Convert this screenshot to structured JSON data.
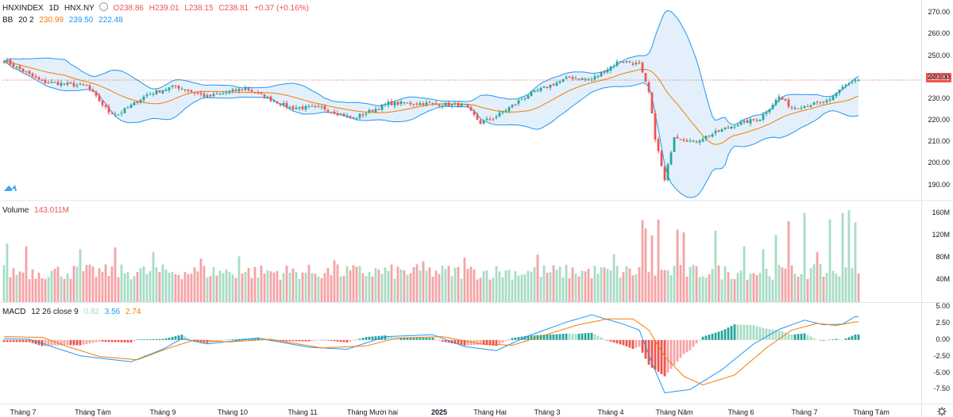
{
  "header": {
    "symbol": "HNXINDEX",
    "interval": "1D",
    "exchange": "HNX.NY",
    "ohlc": {
      "o": "O238.86",
      "h": "H239.01",
      "l": "L238.15",
      "c": "C238.81",
      "change": "+0.37 (+0.16%)"
    }
  },
  "bb_legend": {
    "name": "BB",
    "params": "20 2",
    "basis": "230.99",
    "upper": "239.50",
    "lower": "222.48"
  },
  "volume_legend": {
    "name": "Volume",
    "value": "143.011M"
  },
  "macd_legend": {
    "name": "MACD",
    "params": "12 26 close 9",
    "hist": "0.82",
    "macd": "3.56",
    "signal": "2.74"
  },
  "last_price_label": "238.81",
  "colors": {
    "up": "#26a69a",
    "down": "#ef5350",
    "up_volume": "#a8dcc5",
    "down_volume": "#f5a3a6",
    "bb_band": "#2196f3",
    "bb_basis": "#f57c00",
    "bb_fill": "#e3f0fb",
    "macd_line": "#2196f3",
    "signal_line": "#f57c00"
  },
  "icons": {
    "logo": "tradingview-logo-icon",
    "settings": "gear-icon",
    "visibility": "eye-icon"
  },
  "chart_data": [
    {
      "type": "candlestick",
      "title": "HNXINDEX",
      "yticks": [
        "270.00",
        "260.00",
        "250.00",
        "240.00",
        "230.00",
        "220.00",
        "210.00",
        "200.00",
        "190.00"
      ],
      "ylim": [
        184,
        273
      ],
      "xticks": [
        "Tháng 7",
        "Tháng Tám",
        "Tháng 9",
        "Tháng 10",
        "Tháng 11",
        "Tháng Mười hai",
        "2025",
        "Tháng Hai",
        "Tháng 3",
        "Tháng 4",
        "Tháng Năm",
        "Tháng 6",
        "Tháng 7",
        "Tháng Tám"
      ],
      "close_path": [
        {
          "i": 0,
          "v": 248
        },
        {
          "i": 12,
          "v": 238
        },
        {
          "i": 26,
          "v": 236
        },
        {
          "i": 33,
          "v": 224
        },
        {
          "i": 36,
          "v": 223
        },
        {
          "i": 45,
          "v": 232
        },
        {
          "i": 54,
          "v": 236
        },
        {
          "i": 64,
          "v": 231
        },
        {
          "i": 76,
          "v": 235
        },
        {
          "i": 90,
          "v": 226
        },
        {
          "i": 100,
          "v": 226
        },
        {
          "i": 110,
          "v": 221
        },
        {
          "i": 121,
          "v": 228
        },
        {
          "i": 132,
          "v": 228
        },
        {
          "i": 145,
          "v": 227
        },
        {
          "i": 150,
          "v": 219
        },
        {
          "i": 155,
          "v": 222
        },
        {
          "i": 165,
          "v": 232
        },
        {
          "i": 178,
          "v": 240
        },
        {
          "i": 185,
          "v": 239
        },
        {
          "i": 194,
          "v": 248
        },
        {
          "i": 200,
          "v": 246
        },
        {
          "i": 203,
          "v": 233
        },
        {
          "i": 205,
          "v": 212
        },
        {
          "i": 208,
          "v": 192
        },
        {
          "i": 211,
          "v": 213
        },
        {
          "i": 217,
          "v": 210
        },
        {
          "i": 220,
          "v": 212
        },
        {
          "i": 230,
          "v": 218
        },
        {
          "i": 238,
          "v": 221
        },
        {
          "i": 244,
          "v": 231
        },
        {
          "i": 248,
          "v": 226
        },
        {
          "i": 260,
          "v": 229
        },
        {
          "i": 264,
          "v": 236
        },
        {
          "i": 268,
          "v": 238.81
        }
      ],
      "bb_note": "Bollinger Bands 20 2"
    },
    {
      "type": "bar",
      "title": "Volume",
      "yticks": [
        "160M",
        "120M",
        "80M",
        "40M"
      ],
      "ylim": [
        0,
        175
      ],
      "spikes": [
        {
          "i": 1,
          "v": 105
        },
        {
          "i": 7,
          "v": 100
        },
        {
          "i": 24,
          "v": 95
        },
        {
          "i": 35,
          "v": 98
        },
        {
          "i": 47,
          "v": 90
        },
        {
          "i": 62,
          "v": 78
        },
        {
          "i": 74,
          "v": 82
        },
        {
          "i": 104,
          "v": 75
        },
        {
          "i": 132,
          "v": 73
        },
        {
          "i": 145,
          "v": 80
        },
        {
          "i": 168,
          "v": 85
        },
        {
          "i": 192,
          "v": 86
        },
        {
          "i": 201,
          "v": 147
        },
        {
          "i": 202,
          "v": 132
        },
        {
          "i": 204,
          "v": 120
        },
        {
          "i": 206,
          "v": 148
        },
        {
          "i": 212,
          "v": 130
        },
        {
          "i": 214,
          "v": 125
        },
        {
          "i": 224,
          "v": 128
        },
        {
          "i": 233,
          "v": 100
        },
        {
          "i": 239,
          "v": 95
        },
        {
          "i": 243,
          "v": 120
        },
        {
          "i": 247,
          "v": 145
        },
        {
          "i": 252,
          "v": 160
        },
        {
          "i": 256,
          "v": 90
        },
        {
          "i": 260,
          "v": 148
        },
        {
          "i": 264,
          "v": 160
        },
        {
          "i": 266,
          "v": 165
        },
        {
          "i": 268,
          "v": 143
        }
      ]
    },
    {
      "type": "line",
      "title": "MACD",
      "yticks": [
        "5.00",
        "2.50",
        "0.00",
        "-2.50",
        "-5.00",
        "-7.50"
      ],
      "ylim": [
        -9.5,
        5.5
      ],
      "macd_path": [
        {
          "i": 0,
          "v": 0.2
        },
        {
          "i": 8,
          "v": 0.1
        },
        {
          "i": 15,
          "v": -1.0
        },
        {
          "i": 24,
          "v": -2.4
        },
        {
          "i": 40,
          "v": -3.3
        },
        {
          "i": 50,
          "v": -1.4
        },
        {
          "i": 56,
          "v": 0.2
        },
        {
          "i": 64,
          "v": -0.6
        },
        {
          "i": 80,
          "v": 0.3
        },
        {
          "i": 96,
          "v": -1.1
        },
        {
          "i": 108,
          "v": -1.4
        },
        {
          "i": 120,
          "v": 0.5
        },
        {
          "i": 135,
          "v": 0.8
        },
        {
          "i": 145,
          "v": -1.0
        },
        {
          "i": 155,
          "v": -1.6
        },
        {
          "i": 165,
          "v": 0.6
        },
        {
          "i": 177,
          "v": 2.7
        },
        {
          "i": 185,
          "v": 3.8
        },
        {
          "i": 195,
          "v": 2.4
        },
        {
          "i": 200,
          "v": 1.5
        },
        {
          "i": 204,
          "v": -3.5
        },
        {
          "i": 208,
          "v": -8.0
        },
        {
          "i": 216,
          "v": -7.5
        },
        {
          "i": 226,
          "v": -4.5
        },
        {
          "i": 236,
          "v": -0.6
        },
        {
          "i": 244,
          "v": 1.6
        },
        {
          "i": 252,
          "v": 3.0
        },
        {
          "i": 258,
          "v": 2.3
        },
        {
          "i": 264,
          "v": 2.4
        },
        {
          "i": 268,
          "v": 3.56
        }
      ],
      "signal_path": [
        {
          "i": 0,
          "v": 0.5
        },
        {
          "i": 12,
          "v": 0.4
        },
        {
          "i": 20,
          "v": -1.0
        },
        {
          "i": 30,
          "v": -2.5
        },
        {
          "i": 42,
          "v": -3.0
        },
        {
          "i": 52,
          "v": -1.2
        },
        {
          "i": 60,
          "v": 0.0
        },
        {
          "i": 70,
          "v": -0.3
        },
        {
          "i": 84,
          "v": 0.1
        },
        {
          "i": 100,
          "v": -1.2
        },
        {
          "i": 114,
          "v": -0.9
        },
        {
          "i": 124,
          "v": 0.3
        },
        {
          "i": 138,
          "v": 0.5
        },
        {
          "i": 150,
          "v": -0.6
        },
        {
          "i": 160,
          "v": -0.8
        },
        {
          "i": 170,
          "v": 0.7
        },
        {
          "i": 180,
          "v": 2.2
        },
        {
          "i": 190,
          "v": 3.2
        },
        {
          "i": 198,
          "v": 3.2
        },
        {
          "i": 203,
          "v": 1.5
        },
        {
          "i": 208,
          "v": -2.5
        },
        {
          "i": 214,
          "v": -5.5
        },
        {
          "i": 220,
          "v": -6.8
        },
        {
          "i": 230,
          "v": -5.3
        },
        {
          "i": 240,
          "v": -1.2
        },
        {
          "i": 248,
          "v": 1.5
        },
        {
          "i": 256,
          "v": 2.5
        },
        {
          "i": 262,
          "v": 2.2
        },
        {
          "i": 268,
          "v": 2.74
        }
      ]
    }
  ]
}
